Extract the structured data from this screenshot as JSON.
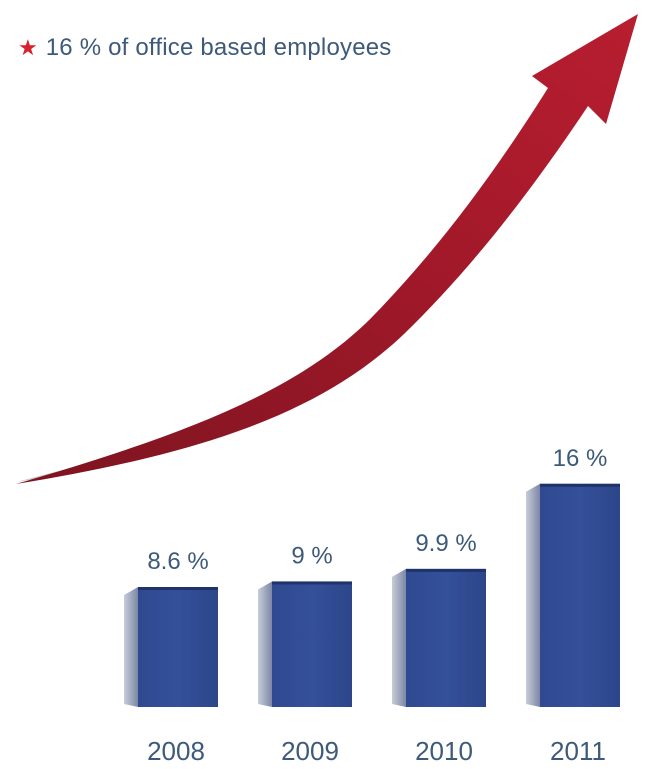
{
  "legend": {
    "symbol": "★",
    "text": "16 % of office based employees",
    "symbol_color": "#d8202e"
  },
  "chart_data": {
    "type": "bar",
    "categories": [
      "2008",
      "2009",
      "2010",
      "2011"
    ],
    "values": [
      8.6,
      9,
      9.9,
      16
    ],
    "value_labels": [
      "8.6 %",
      "9 %",
      "9.9 %",
      "16 %"
    ],
    "title": "",
    "xlabel": "",
    "ylabel": "",
    "bar_color": "#314c93",
    "arrow_color": "#a3192a",
    "text_color": "#3d5a7a",
    "grid": false,
    "legend_position": "top-left"
  }
}
